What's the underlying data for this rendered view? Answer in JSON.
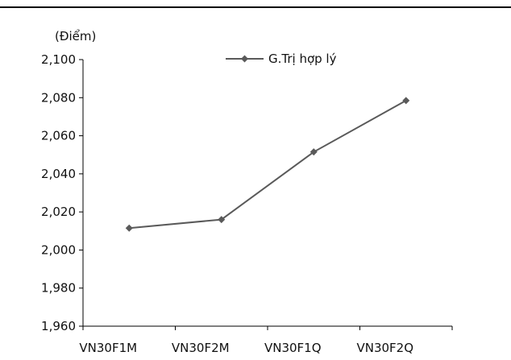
{
  "chart_data": {
    "type": "line",
    "unit_label": "(Điểm)",
    "categories": [
      "VN30F1M",
      "VN30F2M",
      "VN30F1Q",
      "VN30F2Q"
    ],
    "series": [
      {
        "name": "G.Trị hợp lý",
        "values": [
          2011.5,
          2016.0,
          2051.5,
          2078.5
        ]
      }
    ],
    "ylim": [
      1960,
      2100
    ],
    "yticks": [
      1960,
      1980,
      2000,
      2020,
      2040,
      2060,
      2080,
      2100
    ],
    "ytick_labels": [
      "1,960",
      "1,980",
      "2,000",
      "2,020",
      "2,040",
      "2,060",
      "2,080",
      "2,100"
    ],
    "grid": false,
    "legend_position": "top-center",
    "line_color": "#5a5a5a"
  }
}
